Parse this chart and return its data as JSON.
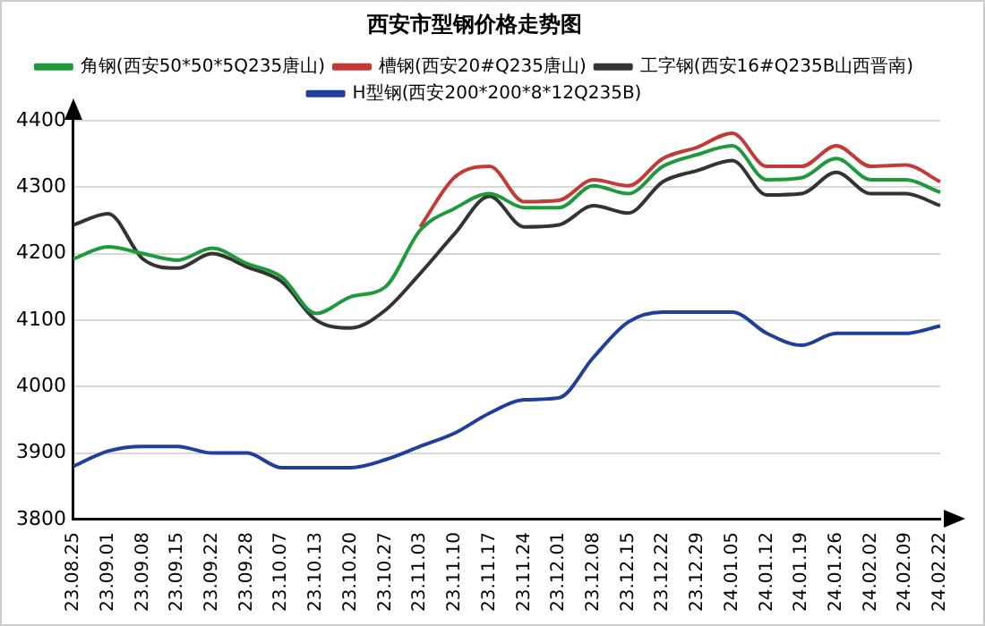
{
  "chart_data": {
    "type": "line",
    "title": "西安市型钢价格走势图",
    "categories": [
      "23.08.25",
      "23.09.01",
      "23.09.08",
      "23.09.15",
      "23.09.22",
      "23.09.28",
      "23.10.07",
      "23.10.13",
      "23.10.20",
      "23.10.27",
      "23.11.03",
      "23.11.10",
      "23.11.17",
      "23.11.24",
      "23.12.01",
      "23.12.08",
      "23.12.15",
      "23.12.22",
      "23.12.29",
      "24.01.05",
      "24.01.12",
      "24.01.19",
      "24.01.26",
      "24.02.02",
      "24.02.09",
      "24.02.22"
    ],
    "series": [
      {
        "name": "角钢(西安50*50*5Q235唐山)",
        "color": "#1e9a3c",
        "values": [
          4192,
          4210,
          4200,
          4190,
          4208,
          4185,
          4165,
          4110,
          4135,
          4150,
          4235,
          4268,
          4290,
          4269,
          4269,
          4302,
          4290,
          4331,
          4349,
          4362,
          4311,
          4314,
          4343,
          4311,
          4311,
          4292
        ]
      },
      {
        "name": "槽钢(西安20#Q235唐山)",
        "color": "#c43a36",
        "values": [
          null,
          null,
          null,
          null,
          null,
          null,
          null,
          null,
          null,
          null,
          4240,
          4315,
          4331,
          4278,
          4280,
          4311,
          4302,
          4343,
          4360,
          4381,
          4331,
          4331,
          4362,
          4331,
          4333,
          4308
        ]
      },
      {
        "name": "工字钢(西安16#Q235B山西晋南)",
        "color": "#333333",
        "values": [
          4243,
          4260,
          4192,
          4178,
          4200,
          4180,
          4158,
          4100,
          4088,
          4115,
          4170,
          4230,
          4286,
          4240,
          4243,
          4272,
          4261,
          4308,
          4325,
          4340,
          4288,
          4290,
          4322,
          4290,
          4290,
          4272
        ]
      },
      {
        "name": "H型钢(西安200*200*8*12Q235B)",
        "color": "#1f3f9a",
        "values": [
          3880,
          3903,
          3910,
          3910,
          3900,
          3900,
          3878,
          3878,
          3878,
          3890,
          3910,
          3930,
          3960,
          3980,
          3983,
          4044,
          4097,
          4112,
          4112,
          4112,
          4080,
          4062,
          4080,
          4080,
          4080,
          4091
        ]
      }
    ],
    "ylim": [
      3800,
      4400
    ],
    "yticks": [
      3800,
      3900,
      4000,
      4100,
      4200,
      4300,
      4400
    ],
    "grid": "y",
    "legend": "top",
    "marker": "none",
    "line_style": "solid"
  }
}
